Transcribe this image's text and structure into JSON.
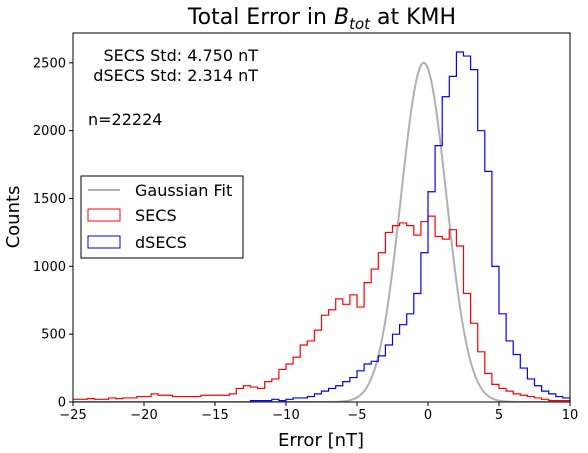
{
  "chart_data": {
    "type": "histogram",
    "title": {
      "prefix": "Total Error in ",
      "symbol_base": "B",
      "symbol_sub": "tot",
      "suffix": " at KMH"
    },
    "xlabel": "Error [nT]",
    "ylabel": "Counts",
    "xlim": [
      -25,
      10
    ],
    "ylim": [
      0,
      2720
    ],
    "x_ticks": [
      -25,
      -20,
      -15,
      -10,
      -5,
      0,
      5,
      10
    ],
    "y_ticks": [
      0,
      500,
      1000,
      1500,
      2000,
      2500
    ],
    "grid": false,
    "legend_placement": "center-left",
    "annotations": {
      "secs_std": "SECS Std: 4.750 nT",
      "dsecs_std": "dSECS Std: 2.314 nT",
      "n": "n=22224"
    },
    "colors": {
      "secs": "#ff0000",
      "dsecs": "#0000ff",
      "gaussian": "#b0b0b0"
    },
    "series": [
      {
        "name": "Gaussian Fit",
        "kind": "gaussian",
        "mean": -0.3,
        "std": 1.6,
        "amplitude": 2500
      },
      {
        "name": "SECS",
        "kind": "step",
        "bin_width": 0.5,
        "edges_start": -25,
        "counts": [
          20,
          20,
          25,
          20,
          20,
          30,
          25,
          30,
          30,
          40,
          40,
          60,
          50,
          50,
          40,
          40,
          40,
          40,
          50,
          50,
          50,
          50,
          60,
          100,
          120,
          110,
          100,
          150,
          170,
          240,
          280,
          330,
          420,
          450,
          530,
          640,
          680,
          760,
          720,
          790,
          700,
          880,
          980,
          1100,
          1250,
          1300,
          1320,
          1300,
          1230,
          1330,
          1370,
          1220,
          1200,
          1270,
          1150,
          800,
          580,
          370,
          210,
          130,
          100,
          80,
          60,
          50,
          40,
          30,
          20,
          10,
          10,
          10
        ]
      },
      {
        "name": "dSECS",
        "kind": "step",
        "bin_width": 0.5,
        "edges_start": -12.5,
        "counts": [
          10,
          10,
          10,
          20,
          10,
          20,
          30,
          30,
          40,
          60,
          80,
          100,
          120,
          150,
          180,
          230,
          280,
          300,
          340,
          420,
          500,
          570,
          650,
          800,
          1100,
          1550,
          1890,
          2250,
          2400,
          2580,
          2550,
          2450,
          2000,
          1700,
          1000,
          650,
          450,
          350,
          250,
          170,
          120,
          80,
          60,
          40,
          30,
          20,
          15,
          10
        ]
      }
    ]
  }
}
